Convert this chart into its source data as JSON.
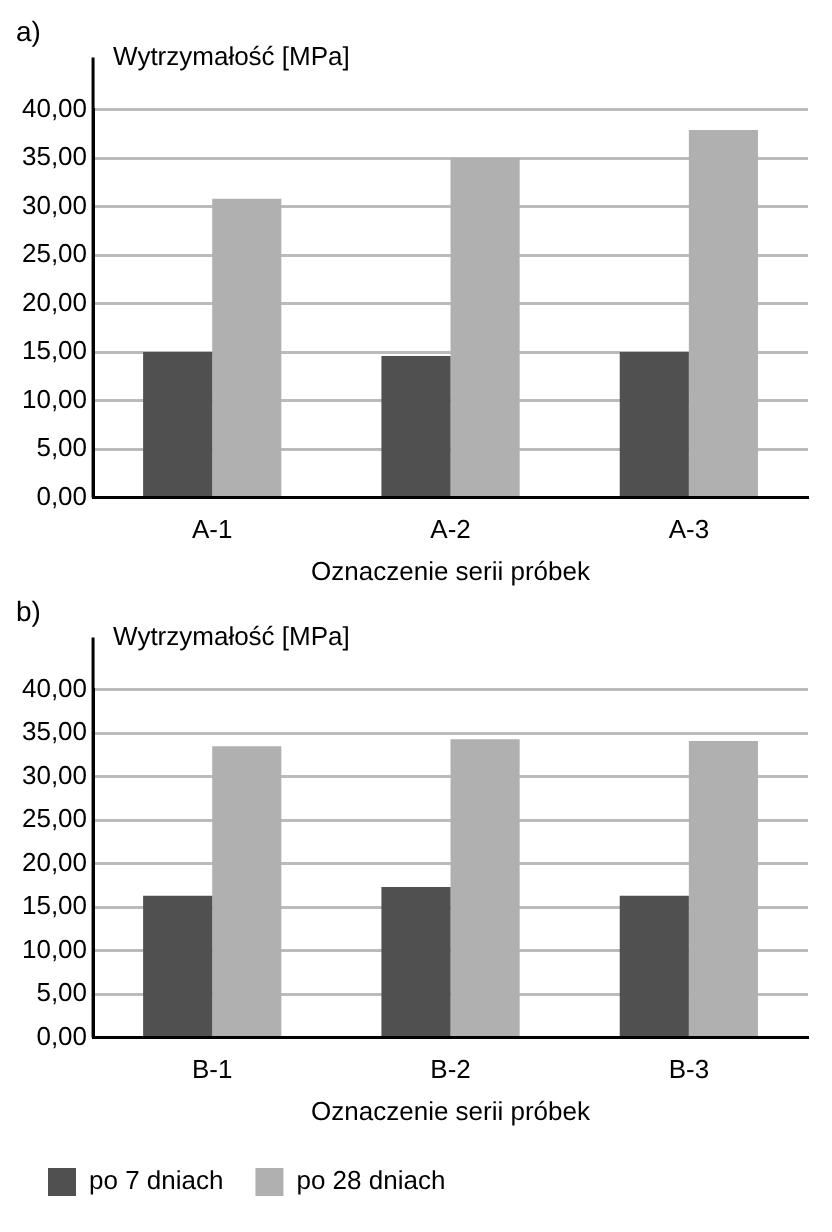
{
  "chart_data": [
    {
      "type": "bar",
      "title": "a)",
      "ylabel": "Wytrzymałość [MPa]",
      "xlabel": "Oznaczenie serii próbek",
      "categories": [
        "A-1",
        "A-2",
        "A-3"
      ],
      "series": [
        {
          "color": "#505050",
          "values": [
            15.0,
            14.6,
            15.0
          ]
        },
        {
          "color": "#b0b0b0",
          "values": [
            30.8,
            35.0,
            37.9
          ]
        }
      ],
      "ylim": [
        0,
        40
      ],
      "yticks": [
        {
          "value": 0,
          "label": "0,00"
        },
        {
          "value": 5,
          "label": "5,00"
        },
        {
          "value": 10,
          "label": "10,00"
        },
        {
          "value": 15,
          "label": "15,00"
        },
        {
          "value": 20,
          "label": "20,00"
        },
        {
          "value": 25,
          "label": "25,00"
        },
        {
          "value": 30,
          "label": "30,00"
        },
        {
          "value": 35,
          "label": "35,00"
        },
        {
          "value": 40,
          "label": "40,00"
        }
      ],
      "grid": "y",
      "legend": false
    },
    {
      "type": "bar",
      "title": "b)",
      "ylabel": "Wytrzymałość [MPa]",
      "xlabel": "Oznaczenie serii próbek",
      "categories": [
        "B-1",
        "B-2",
        "B-3"
      ],
      "series": [
        {
          "name": "po 7 dniach",
          "color": "#505050",
          "values": [
            16.3,
            17.3,
            16.3
          ]
        },
        {
          "name": "po 28 dniach",
          "color": "#b0b0b0",
          "values": [
            33.5,
            34.3,
            34.1
          ]
        }
      ],
      "ylim": [
        0,
        40
      ],
      "yticks": [
        {
          "value": 0,
          "label": "0,00"
        },
        {
          "value": 5,
          "label": "5,00"
        },
        {
          "value": 10,
          "label": "10,00"
        },
        {
          "value": 15,
          "label": "15,00"
        },
        {
          "value": 20,
          "label": "20,00"
        },
        {
          "value": 25,
          "label": "25,00"
        },
        {
          "value": 30,
          "label": "30,00"
        },
        {
          "value": 35,
          "label": "35,00"
        },
        {
          "value": 40,
          "label": "40,00"
        }
      ],
      "grid": "y",
      "legend": "bottom left"
    }
  ]
}
